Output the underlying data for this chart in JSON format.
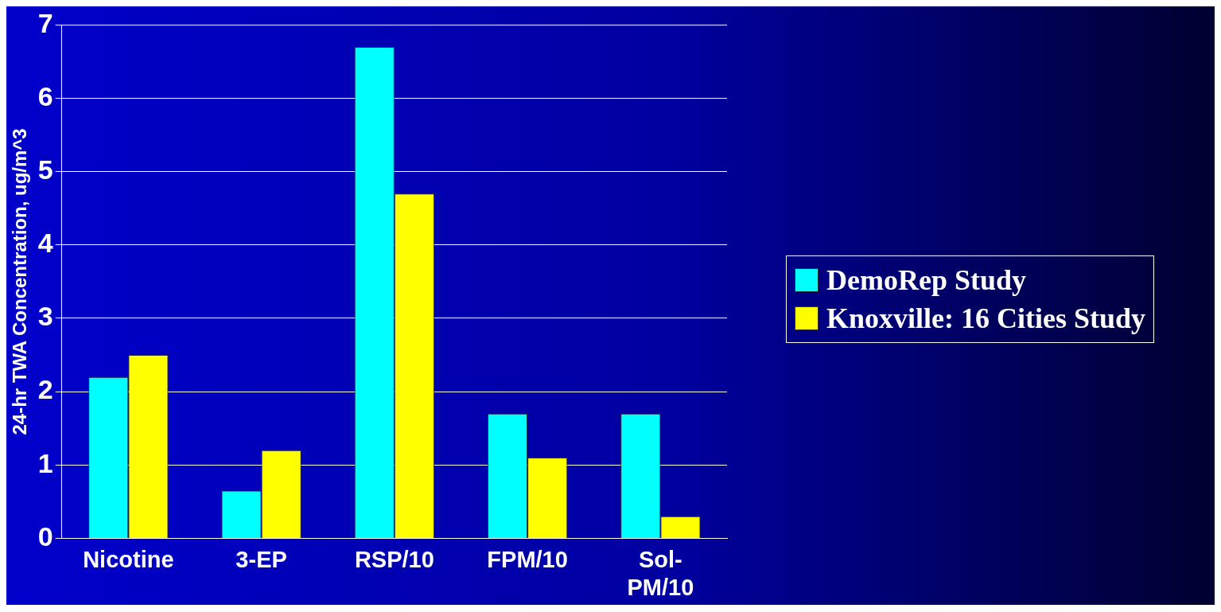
{
  "chart_data": {
    "type": "bar",
    "ylabel": "24-hr TWA Concentration, ug/m^3",
    "categories": [
      "Nicotine",
      "3-EP",
      "RSP/10",
      "FPM/10",
      "Sol-PM/10"
    ],
    "series": [
      {
        "name": "DemoRep Study",
        "color": "#00ffff",
        "values": [
          2.2,
          0.65,
          6.7,
          1.7,
          1.7
        ]
      },
      {
        "name": "Knoxville:  16 Cities Study",
        "color": "#ffff00",
        "values": [
          2.5,
          1.2,
          4.7,
          1.1,
          0.3
        ]
      }
    ],
    "ylim": [
      0,
      7
    ],
    "yticks": [
      0,
      1,
      2,
      3,
      4,
      5,
      6,
      7
    ],
    "grid": "y",
    "legend": "right"
  }
}
